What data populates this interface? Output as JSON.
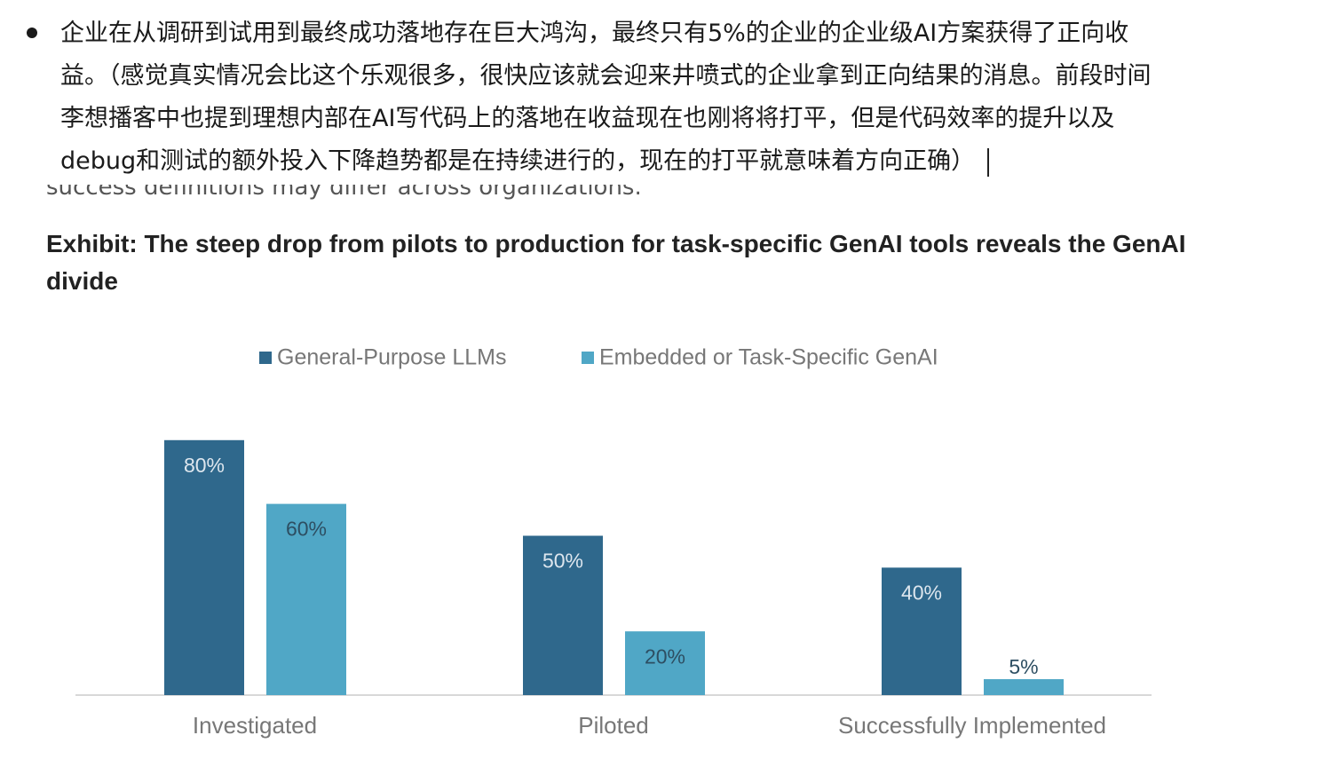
{
  "note": {
    "lines": [
      "企业在从调研到试用到最终成功落地存在巨大鸿沟，最终只有5%的企业的企业级AI方案获得了正向收",
      "益。（感觉真实情况会比这个乐观很多，很快应该就会迎来井喷式的企业拿到正向结果的消息。前段时间",
      "李想播客中也提到理想内部在AI写代码上的落地在收益现在也刚将将打平，但是代码效率的提升以及",
      "debug和测试的额外投入下降趋势都是在持续进行的，现在的打平就意味着方向正确）"
    ]
  },
  "image_caption": "success definitions may differ across organizations.",
  "chart_data": {
    "type": "bar",
    "title": "Exhibit: The steep drop from pilots to production for task-specific GenAI tools reveals the GenAI divide",
    "categories": [
      "Investigated",
      "Piloted",
      "Successfully Implemented"
    ],
    "series": [
      {
        "name": "General-Purpose LLMs",
        "color": "#2f688c",
        "values": [
          80,
          50,
          40
        ],
        "value_labels": [
          "80%",
          "50%",
          "40%"
        ]
      },
      {
        "name": "Embedded or Task-Specific GenAI",
        "color": "#50a7c6",
        "values": [
          60,
          20,
          5
        ],
        "value_labels": [
          "60%",
          "20%",
          "5%"
        ]
      }
    ],
    "ylim": [
      0,
      100
    ]
  }
}
